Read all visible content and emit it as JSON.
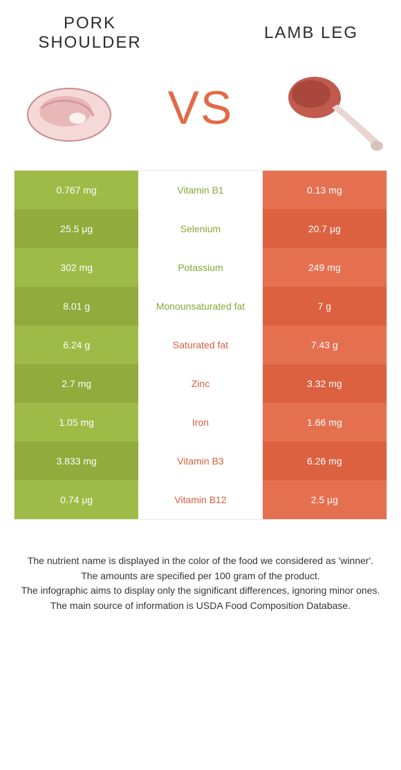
{
  "header": {
    "left_title": "Pork shoulder",
    "right_title": "Lamb leg",
    "vs_label": "VS"
  },
  "colors": {
    "left_dark": "#91ab3c",
    "left_light": "#9fbb47",
    "right_dark": "#dc6140",
    "right_light": "#e57050",
    "vs_color": "#e16a45",
    "text": "#333333"
  },
  "rows": [
    {
      "left": "0.767 mg",
      "label": "Vitamin B1",
      "right": "0.13 mg",
      "winner": "left"
    },
    {
      "left": "25.5 μg",
      "label": "Selenium",
      "right": "20.7 μg",
      "winner": "left"
    },
    {
      "left": "302 mg",
      "label": "Potassium",
      "right": "249 mg",
      "winner": "left"
    },
    {
      "left": "8.01 g",
      "label": "Monounsaturated fat",
      "right": "7 g",
      "winner": "left"
    },
    {
      "left": "6.24 g",
      "label": "Saturated fat",
      "right": "7.43 g",
      "winner": "right"
    },
    {
      "left": "2.7 mg",
      "label": "Zinc",
      "right": "3.32 mg",
      "winner": "right"
    },
    {
      "left": "1.05 mg",
      "label": "Iron",
      "right": "1.66 mg",
      "winner": "right"
    },
    {
      "left": "3.833 mg",
      "label": "Vitamin B3",
      "right": "6.26 mg",
      "winner": "right"
    },
    {
      "left": "0.74 μg",
      "label": "Vitamin B12",
      "right": "2.5 μg",
      "winner": "right"
    }
  ],
  "footer": {
    "line1": "The nutrient name is displayed in the color of the food we considered as 'winner'.",
    "line2": "The amounts are specified per 100 gram of the product.",
    "line3": "The infographic aims to display only the significant differences, ignoring minor ones.",
    "line4": "The main source of information is USDA Food Composition Database."
  }
}
